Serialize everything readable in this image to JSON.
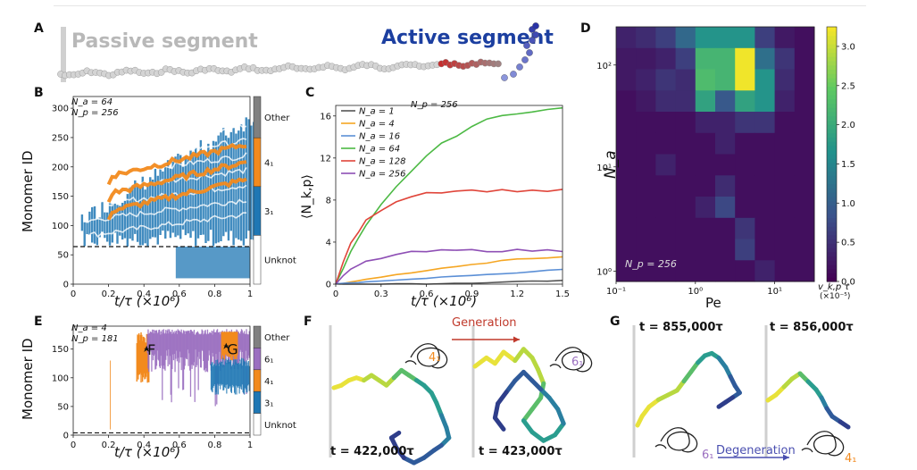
{
  "panelA": {
    "letter": "A",
    "passive_label": "Passive segment",
    "active_label": "Active segment"
  },
  "panelB": {
    "letter": "B",
    "annotation": [
      "N_a = 64",
      "N_p = 256"
    ],
    "chart_data": {
      "type": "heatmap",
      "ylabel": "Monomer ID",
      "xlabel": "t/τ  (×10⁶)",
      "xlim": [
        0,
        1
      ],
      "ylim": [
        0,
        320
      ],
      "xticks": [
        "0",
        "0.2",
        "0.4",
        "0.6",
        "0.8",
        "1"
      ],
      "yticks": [
        "0",
        "50",
        "100",
        "150",
        "200",
        "250",
        "300"
      ],
      "legend": [
        "Other",
        "4₁",
        "3₁",
        "Unknot"
      ],
      "legend_colors": [
        "#808080",
        "#f28a1e",
        "#1f77b4",
        "#ffffff"
      ],
      "boundary_line_y": 64
    }
  },
  "panelC": {
    "letter": "C",
    "chart_data": {
      "type": "line",
      "ylabel": "⟨N_k,p⟩",
      "xlabel": "t/τ  (×10⁶)",
      "xlim": [
        0,
        1.5
      ],
      "ylim": [
        0,
        17
      ],
      "xticks": [
        "0",
        "0.3",
        "0.6",
        "0.9",
        "1.2",
        "1.5"
      ],
      "yticks": [
        "0",
        "4",
        "8",
        "12",
        "16"
      ],
      "annotation": "N_p = 256",
      "x": [
        0,
        0.05,
        0.1,
        0.15,
        0.2,
        0.3,
        0.4,
        0.5,
        0.6,
        0.7,
        0.8,
        0.9,
        1.0,
        1.1,
        1.2,
        1.3,
        1.4,
        1.5
      ],
      "series": [
        {
          "name": "N_a = 1",
          "color": "#555555",
          "values": [
            0,
            0,
            0,
            0,
            0,
            0,
            0,
            0,
            0,
            0.05,
            0.08,
            0.1,
            0.15,
            0.2,
            0.25,
            0.3,
            0.3,
            0.35
          ]
        },
        {
          "name": "N_a = 4",
          "color": "#f5a623",
          "values": [
            0,
            0.1,
            0.2,
            0.3,
            0.45,
            0.7,
            0.9,
            1.1,
            1.3,
            1.5,
            1.7,
            1.85,
            2.0,
            2.15,
            2.3,
            2.45,
            2.6,
            2.7
          ]
        },
        {
          "name": "N_a = 16",
          "color": "#5b8fd6",
          "values": [
            0,
            0.05,
            0.1,
            0.15,
            0.2,
            0.3,
            0.4,
            0.5,
            0.55,
            0.65,
            0.75,
            0.85,
            0.9,
            1.0,
            1.1,
            1.2,
            1.3,
            1.4
          ]
        },
        {
          "name": "N_a = 64",
          "color": "#4cb944",
          "values": [
            0,
            1.5,
            3.0,
            4.3,
            5.5,
            7.5,
            9.2,
            10.8,
            12.2,
            13.3,
            14.2,
            15.0,
            15.6,
            16.0,
            16.3,
            16.5,
            16.6,
            16.7
          ]
        },
        {
          "name": "N_a = 128",
          "color": "#e0453a",
          "values": [
            0,
            2.2,
            3.8,
            5.0,
            6.0,
            7.1,
            7.9,
            8.4,
            8.7,
            8.8,
            8.9,
            8.9,
            8.9,
            8.9,
            8.9,
            8.9,
            8.9,
            8.9
          ]
        },
        {
          "name": "N_a = 256",
          "color": "#8e4fb5",
          "values": [
            0,
            0.8,
            1.4,
            1.8,
            2.1,
            2.5,
            2.8,
            3.0,
            3.1,
            3.15,
            3.2,
            3.2,
            3.2,
            3.2,
            3.2,
            3.2,
            3.2,
            3.2
          ]
        }
      ]
    }
  },
  "panelD": {
    "letter": "D",
    "chart_data": {
      "type": "heatmap",
      "xlabel": "Pe",
      "ylabel": "N_a",
      "annotation": "N_p = 256",
      "colorbar_label": "v_k,p τ",
      "colorbar_scale": "(×10⁻⁵)",
      "colorbar_ticks": [
        "0.0",
        "0.5",
        "1.0",
        "1.5",
        "2.0",
        "2.5",
        "3.0"
      ],
      "colorbar_range": [
        0,
        3.25
      ],
      "xticks": [
        "10⁻¹",
        "10⁰",
        "10¹"
      ],
      "yticks": [
        "10⁰",
        "10¹",
        "10²"
      ],
      "cols": 10,
      "rows": 12,
      "values": [
        [
          0.2,
          0.3,
          0.5,
          1.0,
          1.6,
          1.6,
          1.6,
          0.5,
          0.1,
          0.0
        ],
        [
          0.1,
          0.1,
          0.2,
          0.5,
          2.1,
          2.1,
          3.2,
          1.1,
          0.4,
          0.0
        ],
        [
          0.1,
          0.2,
          0.4,
          0.3,
          2.2,
          2.1,
          3.2,
          1.6,
          0.3,
          0.0
        ],
        [
          0.0,
          0.1,
          0.3,
          0.3,
          1.8,
          0.8,
          1.8,
          1.6,
          0.2,
          0.0
        ],
        [
          0.0,
          0.0,
          0.0,
          0.0,
          0.2,
          0.2,
          0.4,
          0.4,
          0.0,
          0.0
        ],
        [
          0.0,
          0.0,
          0.0,
          0.0,
          0.0,
          0.2,
          0.0,
          0.0,
          0.0,
          0.0
        ],
        [
          0.0,
          0.0,
          0.2,
          0.0,
          0.0,
          0.0,
          0.0,
          0.0,
          0.0,
          0.0
        ],
        [
          0.0,
          0.0,
          0.0,
          0.0,
          0.0,
          0.3,
          0.0,
          0.0,
          0.0,
          0.0
        ],
        [
          0.0,
          0.0,
          0.0,
          0.0,
          0.2,
          0.6,
          0.0,
          0.0,
          0.0,
          0.0
        ],
        [
          0.0,
          0.0,
          0.0,
          0.0,
          0.0,
          0.0,
          0.4,
          0.0,
          0.0,
          0.0
        ],
        [
          0.0,
          0.0,
          0.0,
          0.0,
          0.0,
          0.0,
          0.5,
          0.0,
          0.0,
          0.0
        ],
        [
          0.0,
          0.0,
          0.0,
          0.0,
          0.0,
          0.0,
          0.0,
          0.2,
          0.0,
          0.0
        ]
      ]
    }
  },
  "panelE": {
    "letter": "E",
    "annotation": [
      "N_a = 4",
      "N_p = 181"
    ],
    "chart_data": {
      "type": "heatmap",
      "ylabel": "Monomer ID",
      "xlabel": "t/τ  (×10⁶)",
      "xlim": [
        0,
        1
      ],
      "ylim": [
        0,
        190
      ],
      "xticks": [
        "0",
        "0.2",
        "0.4",
        "0.6",
        "0.8",
        "1"
      ],
      "yticks": [
        "0",
        "50",
        "100",
        "150"
      ],
      "legend": [
        "Other",
        "6₁",
        "4₁",
        "3₁",
        "Unknot"
      ],
      "legend_colors": [
        "#808080",
        "#9b6fc0",
        "#f28a1e",
        "#1f77b4",
        "#ffffff"
      ],
      "markers": [
        "F",
        "G"
      ],
      "boundary_line_y": 4
    }
  },
  "panelF": {
    "letter": "F",
    "arrow_label": "Generation",
    "knot_left": "4₁",
    "knot_right": "6₁",
    "time_left": "t = 422,000τ",
    "time_right": "t = 423,000τ"
  },
  "panelG": {
    "letter": "G",
    "arrow_label": "Degeneration",
    "knot_left": "6₁",
    "knot_right": "4₁",
    "time_left": "t = 855,000τ",
    "time_right": "t = 856,000τ"
  },
  "colors": {
    "blue": "#1f77b4",
    "orange": "#f28a1e",
    "purple": "#9b6fc0",
    "gray": "#808080",
    "active_blue": "#1c3fa0",
    "passive_gray": "#b0b0b0",
    "generation": "#c0392b",
    "degeneration": "#4a4fb0"
  }
}
